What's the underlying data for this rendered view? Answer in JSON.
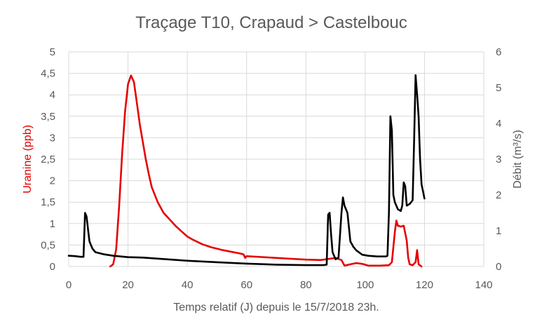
{
  "chart_data": {
    "type": "line",
    "title": "Traçage T10, Crapaud > Castelbouc",
    "xlabel": "Temps relatif (J) depuis le 15/7/2018 23h.",
    "ylabel_left": "Uranine (ppb)",
    "ylabel_right": "Débit (m³/s)",
    "xlim": [
      0,
      140
    ],
    "xticks": [
      0,
      20,
      40,
      60,
      80,
      100,
      120,
      140
    ],
    "y_left_lim": [
      0,
      5
    ],
    "y_left_ticks": [
      "0",
      "0,5",
      "1",
      "1,5",
      "2",
      "2,5",
      "3",
      "3,5",
      "4",
      "4,5",
      "5"
    ],
    "y_right_lim": [
      0,
      6
    ],
    "y_right_ticks": [
      "0",
      "1",
      "2",
      "3",
      "4",
      "5",
      "6"
    ],
    "grid": true,
    "colors": {
      "uranine": "#e60000",
      "debit": "#000000",
      "text": "#595959",
      "grid": "#d9d9d9"
    },
    "series": [
      {
        "axis": "left",
        "color": "#e60000",
        "points": [
          [
            14,
            0
          ],
          [
            15,
            0.05
          ],
          [
            16,
            0.4
          ],
          [
            17,
            1.4
          ],
          [
            18,
            2.6
          ],
          [
            19,
            3.6
          ],
          [
            20,
            4.25
          ],
          [
            21,
            4.45
          ],
          [
            22,
            4.3
          ],
          [
            23,
            3.8
          ],
          [
            24,
            3.3
          ],
          [
            25,
            2.9
          ],
          [
            26,
            2.5
          ],
          [
            27,
            2.15
          ],
          [
            28,
            1.85
          ],
          [
            30,
            1.5
          ],
          [
            32,
            1.25
          ],
          [
            34,
            1.1
          ],
          [
            36,
            0.95
          ],
          [
            38,
            0.82
          ],
          [
            40,
            0.7
          ],
          [
            42,
            0.62
          ],
          [
            45,
            0.52
          ],
          [
            48,
            0.45
          ],
          [
            52,
            0.38
          ],
          [
            55,
            0.34
          ],
          [
            58,
            0.3
          ],
          [
            59,
            0.28
          ],
          [
            59.5,
            0.2
          ],
          [
            60,
            0.24
          ],
          [
            65,
            0.22
          ],
          [
            70,
            0.2
          ],
          [
            75,
            0.18
          ],
          [
            80,
            0.16
          ],
          [
            85,
            0.15
          ],
          [
            88,
            0.18
          ],
          [
            90,
            0.2
          ],
          [
            92,
            0.15
          ],
          [
            93,
            0.02
          ],
          [
            95,
            0.05
          ],
          [
            97,
            0.08
          ],
          [
            99,
            0.06
          ],
          [
            101,
            0.02
          ],
          [
            105,
            0.02
          ],
          [
            108,
            0.03
          ],
          [
            109,
            0.1
          ],
          [
            110,
            0.8
          ],
          [
            110.5,
            1.07
          ],
          [
            111,
            0.95
          ],
          [
            112,
            0.93
          ],
          [
            113,
            0.95
          ],
          [
            114,
            0.6
          ],
          [
            114.5,
            0.2
          ],
          [
            115,
            0.05
          ],
          [
            116,
            0.03
          ],
          [
            117,
            0.1
          ],
          [
            117.5,
            0.38
          ],
          [
            118,
            0.05
          ],
          [
            119,
            0
          ]
        ]
      },
      {
        "axis": "right",
        "color": "#000000",
        "points": [
          [
            0,
            0.3
          ],
          [
            2,
            0.29
          ],
          [
            4,
            0.27
          ],
          [
            5,
            0.27
          ],
          [
            5.5,
            1.5
          ],
          [
            6,
            1.4
          ],
          [
            7,
            0.7
          ],
          [
            8,
            0.5
          ],
          [
            9,
            0.4
          ],
          [
            12,
            0.34
          ],
          [
            15,
            0.3
          ],
          [
            20,
            0.26
          ],
          [
            25,
            0.25
          ],
          [
            30,
            0.22
          ],
          [
            40,
            0.16
          ],
          [
            50,
            0.12
          ],
          [
            60,
            0.08
          ],
          [
            70,
            0.05
          ],
          [
            80,
            0.04
          ],
          [
            86,
            0.04
          ],
          [
            87,
            0.05
          ],
          [
            87.5,
            1.45
          ],
          [
            88,
            1.5
          ],
          [
            88.5,
            0.9
          ],
          [
            89,
            0.4
          ],
          [
            90,
            0.2
          ],
          [
            91,
            0.25
          ],
          [
            92,
            1.5
          ],
          [
            92.5,
            1.93
          ],
          [
            93,
            1.7
          ],
          [
            94,
            1.5
          ],
          [
            95,
            0.7
          ],
          [
            96,
            0.55
          ],
          [
            97,
            0.45
          ],
          [
            99,
            0.33
          ],
          [
            101,
            0.3
          ],
          [
            104,
            0.28
          ],
          [
            107,
            0.28
          ],
          [
            107.5,
            0.3
          ],
          [
            108,
            1.5
          ],
          [
            108.5,
            4.2
          ],
          [
            109,
            3.8
          ],
          [
            109.5,
            2.0
          ],
          [
            110,
            1.8
          ],
          [
            111,
            1.6
          ],
          [
            112,
            1.55
          ],
          [
            112.5,
            1.7
          ],
          [
            113,
            2.35
          ],
          [
            113.5,
            2.25
          ],
          [
            114,
            1.7
          ],
          [
            115,
            1.75
          ],
          [
            116,
            1.85
          ],
          [
            116.5,
            3.5
          ],
          [
            117,
            5.35
          ],
          [
            117.5,
            4.8
          ],
          [
            118,
            4.2
          ],
          [
            118.5,
            3.0
          ],
          [
            119,
            2.3
          ],
          [
            119.5,
            2.1
          ],
          [
            120,
            1.9
          ]
        ]
      }
    ]
  }
}
